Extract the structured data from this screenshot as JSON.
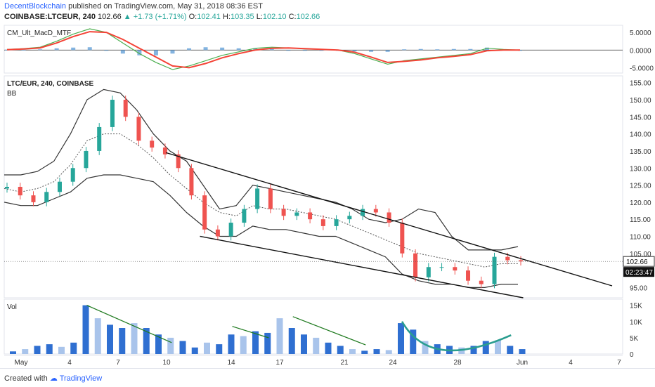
{
  "header": {
    "author": "DecentBlockchain",
    "published": "published on TradingView.com, May 31, 2018 08:36 EST",
    "symbol": "COINBASE:LTCEUR, 240",
    "last": "102.66",
    "arrow": "▲",
    "change": "+1.73 (+1.71%)",
    "o_label": "O:",
    "o": "102.41",
    "h_label": "H:",
    "h": "103.35",
    "l_label": "L:",
    "l": "102.10",
    "c_label": "C:",
    "c": "102.66"
  },
  "footer": {
    "created": "Created with",
    "brand": "TradingView"
  },
  "colors": {
    "up": "#26a69a",
    "down": "#ef5350",
    "macd_fast": "#4caf50",
    "macd_slow": "#f44336",
    "macd_dark": "#1b3a12",
    "hist": "#5b9bd5",
    "vol_dark": "#2f6fd1",
    "vol_light": "#a9c4eb",
    "trend": "#1f7a1f",
    "cup": "#2a9d8f"
  },
  "chart_data": [
    {
      "type": "line",
      "pane": "indicator",
      "title": "CM_Ult_MacD_MTF",
      "ylim": [
        -6.5,
        7
      ],
      "y_ticks": [
        "5.0000",
        "0.0000",
        "-5.0000"
      ],
      "x": [
        0,
        1,
        2,
        3,
        4,
        5,
        6,
        7,
        8,
        9,
        10,
        11,
        12,
        13,
        14,
        15,
        16,
        17,
        18,
        19,
        20,
        21,
        22,
        23,
        24,
        25,
        26,
        27,
        28,
        29,
        30,
        31
      ],
      "series": [
        {
          "values": [
            0.2,
            0.4,
            0.8,
            2.5,
            4.5,
            6.0,
            5.0,
            2.0,
            -1.0,
            -3.5,
            -5.5,
            -4.5,
            -3.0,
            -1.5,
            -0.5,
            0.5,
            0.8,
            0.6,
            0.3,
            0.2,
            0.0,
            -1.0,
            -2.5,
            -4.0,
            -3.0,
            -2.5,
            -2.0,
            -1.5,
            -1.0,
            0.5,
            0.2,
            0.0
          ]
        },
        {
          "values": [
            0.1,
            0.3,
            0.6,
            2.0,
            3.8,
            5.2,
            5.0,
            3.0,
            0.5,
            -2.0,
            -4.5,
            -5.0,
            -3.8,
            -2.2,
            -1.0,
            0.0,
            0.5,
            0.6,
            0.4,
            0.2,
            0.0,
            -0.6,
            -2.0,
            -3.5,
            -3.2,
            -2.8,
            -2.2,
            -1.8,
            -1.3,
            -0.2,
            0.0,
            0.0
          ]
        }
      ],
      "histogram": [
        0.1,
        0.1,
        0.2,
        0.5,
        0.7,
        0.8,
        0.0,
        -1.0,
        -1.5,
        -1.5,
        -1.0,
        0.5,
        0.8,
        0.7,
        0.5,
        0.5,
        0.3,
        0.0,
        -0.1,
        0.0,
        0.0,
        -0.4,
        -0.5,
        -0.5,
        0.2,
        0.3,
        0.2,
        0.3,
        0.3,
        0.7,
        0.2,
        0.0
      ]
    },
    {
      "type": "candlestick",
      "pane": "price",
      "title": "LTC/EUR, 240, COINBASE",
      "study": "BB",
      "ylim": [
        92,
        157
      ],
      "y_ticks": [
        "155.00",
        "150.00",
        "145.00",
        "140.00",
        "135.00",
        "130.00",
        "125.00",
        "120.00",
        "115.00",
        "110.00",
        "105.00",
        "100.00",
        "95.00"
      ],
      "price_tag": "102.66",
      "time_tag": "02:23:47",
      "x_ticks": [
        {
          "label": "May",
          "d": 0
        },
        {
          "label": "4",
          "d": 3
        },
        {
          "label": "7",
          "d": 6
        },
        {
          "label": "10",
          "d": 9
        },
        {
          "label": "14",
          "d": 13
        },
        {
          "label": "17",
          "d": 16
        },
        {
          "label": "21",
          "d": 20
        },
        {
          "label": "24",
          "d": 23
        },
        {
          "label": "28",
          "d": 27
        },
        {
          "label": "Jun",
          "d": 31
        },
        {
          "label": "4",
          "d": 34
        },
        {
          "label": "7",
          "d": 37
        }
      ],
      "close": [
        124.5,
        122,
        120,
        123,
        126,
        130,
        135,
        142,
        150,
        145,
        138,
        136,
        134,
        130,
        122,
        112,
        110,
        114,
        118,
        124,
        118,
        116,
        117,
        115,
        113,
        115,
        116,
        118,
        117,
        114,
        105,
        98,
        101,
        101,
        100,
        97,
        96,
        104,
        103,
        102.66
      ],
      "bb_upper": [
        128,
        128,
        129,
        132,
        140,
        150,
        153,
        152,
        147,
        140,
        135,
        132,
        125,
        118,
        119,
        125,
        124,
        123,
        122,
        121,
        120,
        118,
        115,
        114,
        115,
        118,
        117,
        110,
        106,
        106,
        106,
        107
      ],
      "bb_middle": [
        124,
        123,
        124,
        126,
        131,
        138,
        140,
        140,
        137,
        133,
        128,
        124,
        120,
        117,
        116,
        119,
        118,
        118,
        117,
        116,
        115,
        113,
        111,
        109,
        107,
        105,
        104,
        103,
        102,
        101,
        102,
        102
      ],
      "bb_lower": [
        120,
        119,
        119,
        121,
        123,
        127,
        128,
        128,
        127,
        126,
        122,
        117,
        113,
        110,
        110,
        113,
        112,
        112,
        111,
        110,
        110,
        108,
        106,
        104,
        99,
        97,
        96,
        96,
        95,
        95,
        96,
        96
      ],
      "trendlines": [
        {
          "from": [
            9.4,
            134.5
          ],
          "to": [
            37,
            95.5
          ]
        },
        {
          "from": [
            11.5,
            110
          ],
          "to": [
            31.5,
            92
          ]
        }
      ]
    },
    {
      "type": "bar",
      "pane": "volume",
      "title": "Vol",
      "ylim": [
        0,
        16000
      ],
      "y_ticks": [
        "15K",
        "10K",
        "5K",
        "0"
      ],
      "values": [
        800,
        1500,
        2500,
        3000,
        2200,
        3500,
        15000,
        11000,
        9000,
        8000,
        9500,
        8000,
        6000,
        5000,
        4000,
        2000,
        3500,
        3000,
        6000,
        5500,
        7000,
        6500,
        11000,
        8000,
        6000,
        5000,
        3500,
        2500,
        1500,
        1000,
        1500,
        1200,
        9500,
        7500,
        4000,
        3000,
        2500,
        2000,
        2500,
        4000,
        4200,
        2500,
        1500
      ],
      "trendlines": [
        {
          "from": [
            6,
            15000
          ],
          "to": [
            13,
            3500
          ]
        },
        {
          "from": [
            18,
            8500
          ],
          "to": [
            21,
            5000
          ]
        },
        {
          "from": [
            23,
            11500
          ],
          "to": [
            29,
            2800
          ]
        }
      ],
      "arc": {
        "start": [
          32,
          10000
        ],
        "end": [
          41,
          5800
        ]
      }
    }
  ]
}
